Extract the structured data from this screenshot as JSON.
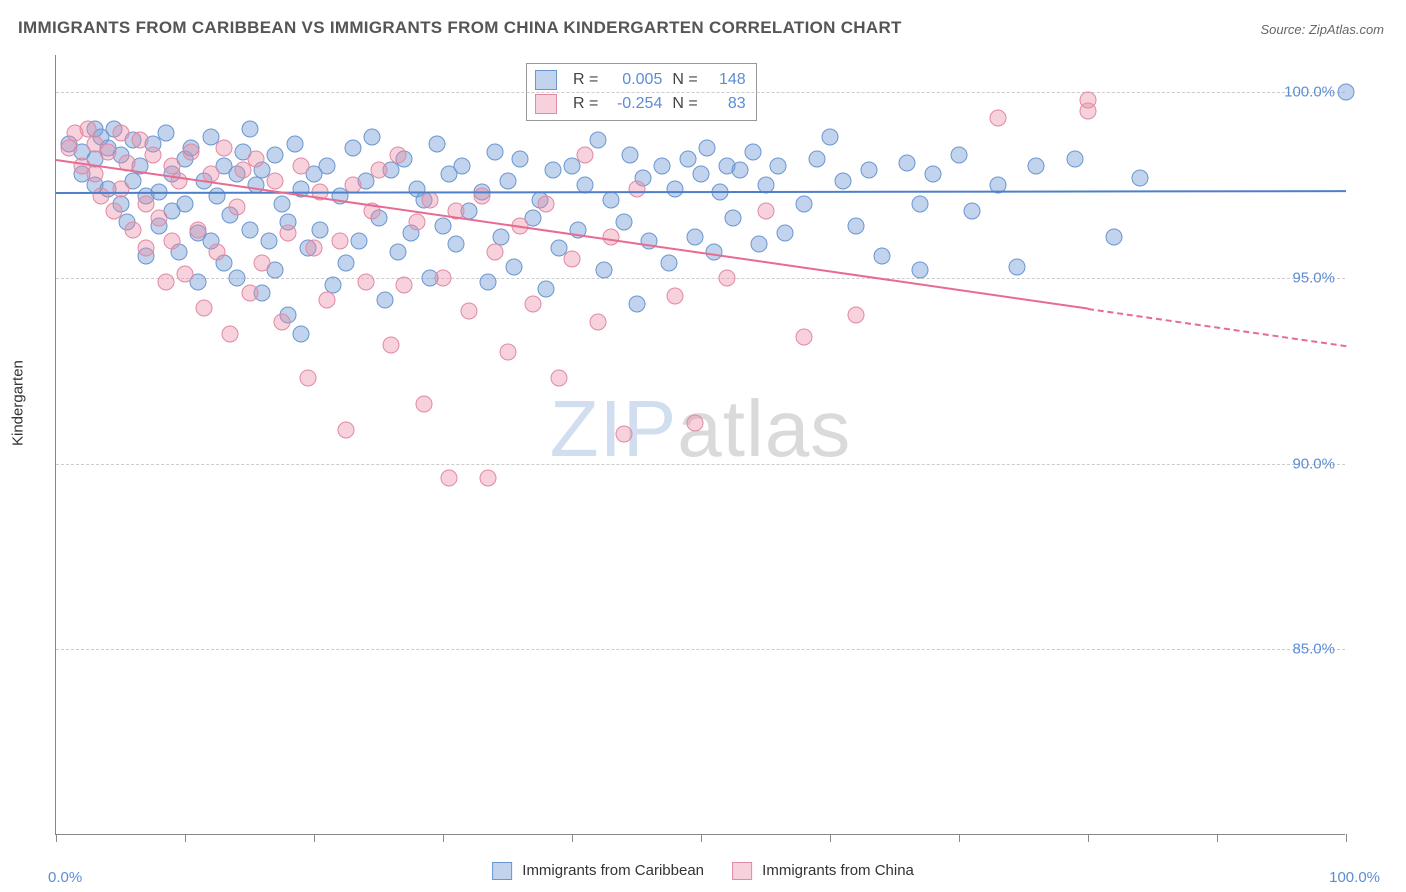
{
  "title": "IMMIGRANTS FROM CARIBBEAN VS IMMIGRANTS FROM CHINA KINDERGARTEN CORRELATION CHART",
  "source": "Source: ZipAtlas.com",
  "ylabel": "Kindergarten",
  "watermark_parts": [
    "ZIP",
    "atlas"
  ],
  "chart": {
    "type": "scatter-correlation",
    "xlim": [
      0,
      100
    ],
    "ylim": [
      80,
      101
    ],
    "xtick_label_min": "0.0%",
    "xtick_label_max": "100.0%",
    "xtick_positions": [
      0,
      10,
      20,
      30,
      40,
      50,
      60,
      70,
      80,
      90,
      100
    ],
    "ytick_positions": [
      85,
      90,
      95,
      100
    ],
    "ytick_labels": [
      "85.0%",
      "90.0%",
      "95.0%",
      "100.0%"
    ],
    "grid_color": "#cccccc",
    "background_color": "#ffffff",
    "axis_color": "#888888",
    "axis_label_color": "#5b8dd6",
    "text_color": "#333333",
    "title_fontsize": 17,
    "label_fontsize": 15,
    "point_radius": 8.5,
    "series": [
      {
        "name": "Immigrants from Caribbean",
        "fill": "rgba(120,160,215,0.45)",
        "stroke": "#6a96d0",
        "R": "0.005",
        "N": "148",
        "regression": {
          "x0": 0,
          "y0": 97.3,
          "x1": 100,
          "y1": 97.35,
          "solid_to_x": 100,
          "color": "#4f7fc7"
        },
        "points": [
          [
            1,
            98.6
          ],
          [
            2,
            98.4
          ],
          [
            2,
            97.8
          ],
          [
            3,
            99.0
          ],
          [
            3,
            98.2
          ],
          [
            3,
            97.5
          ],
          [
            3.5,
            98.8
          ],
          [
            4,
            98.5
          ],
          [
            4,
            97.4
          ],
          [
            4.5,
            99.0
          ],
          [
            5,
            98.3
          ],
          [
            5,
            97.0
          ],
          [
            5.5,
            96.5
          ],
          [
            6,
            98.7
          ],
          [
            6,
            97.6
          ],
          [
            6.5,
            98.0
          ],
          [
            7,
            97.2
          ],
          [
            7,
            95.6
          ],
          [
            7.5,
            98.6
          ],
          [
            8,
            97.3
          ],
          [
            8,
            96.4
          ],
          [
            8.5,
            98.9
          ],
          [
            9,
            97.8
          ],
          [
            9,
            96.8
          ],
          [
            9.5,
            95.7
          ],
          [
            10,
            98.2
          ],
          [
            10,
            97.0
          ],
          [
            10.5,
            98.5
          ],
          [
            11,
            96.2
          ],
          [
            11,
            94.9
          ],
          [
            11.5,
            97.6
          ],
          [
            12,
            98.8
          ],
          [
            12,
            96.0
          ],
          [
            12.5,
            97.2
          ],
          [
            13,
            95.4
          ],
          [
            13,
            98.0
          ],
          [
            13.5,
            96.7
          ],
          [
            14,
            97.8
          ],
          [
            14,
            95.0
          ],
          [
            14.5,
            98.4
          ],
          [
            15,
            96.3
          ],
          [
            15,
            99.0
          ],
          [
            15.5,
            97.5
          ],
          [
            16,
            94.6
          ],
          [
            16,
            97.9
          ],
          [
            16.5,
            96.0
          ],
          [
            17,
            98.3
          ],
          [
            17,
            95.2
          ],
          [
            17.5,
            97.0
          ],
          [
            18,
            96.5
          ],
          [
            18,
            94.0
          ],
          [
            18.5,
            98.6
          ],
          [
            19,
            97.4
          ],
          [
            19,
            93.5
          ],
          [
            19.5,
            95.8
          ],
          [
            20,
            97.8
          ],
          [
            20.5,
            96.3
          ],
          [
            21,
            98.0
          ],
          [
            21.5,
            94.8
          ],
          [
            22,
            97.2
          ],
          [
            22.5,
            95.4
          ],
          [
            23,
            98.5
          ],
          [
            23.5,
            96.0
          ],
          [
            24,
            97.6
          ],
          [
            24.5,
            98.8
          ],
          [
            25,
            96.6
          ],
          [
            25.5,
            94.4
          ],
          [
            26,
            97.9
          ],
          [
            26.5,
            95.7
          ],
          [
            27,
            98.2
          ],
          [
            27.5,
            96.2
          ],
          [
            28,
            97.4
          ],
          [
            28.5,
            97.1
          ],
          [
            29,
            95.0
          ],
          [
            29.5,
            98.6
          ],
          [
            30,
            96.4
          ],
          [
            30.5,
            97.8
          ],
          [
            31,
            95.9
          ],
          [
            31.5,
            98.0
          ],
          [
            32,
            96.8
          ],
          [
            33,
            97.3
          ],
          [
            33.5,
            94.9
          ],
          [
            34,
            98.4
          ],
          [
            34.5,
            96.1
          ],
          [
            35,
            97.6
          ],
          [
            35.5,
            95.3
          ],
          [
            36,
            98.2
          ],
          [
            37,
            96.6
          ],
          [
            37.5,
            97.1
          ],
          [
            38,
            94.7
          ],
          [
            38.5,
            97.9
          ],
          [
            39,
            95.8
          ],
          [
            40,
            98.0
          ],
          [
            40.5,
            96.3
          ],
          [
            41,
            97.5
          ],
          [
            42,
            98.7
          ],
          [
            42.5,
            95.2
          ],
          [
            43,
            97.1
          ],
          [
            44,
            96.5
          ],
          [
            44.5,
            98.3
          ],
          [
            45,
            94.3
          ],
          [
            45.5,
            97.7
          ],
          [
            46,
            96.0
          ],
          [
            47,
            98.0
          ],
          [
            47.5,
            95.4
          ],
          [
            48,
            97.4
          ],
          [
            49,
            98.2
          ],
          [
            49.5,
            96.1
          ],
          [
            50,
            97.8
          ],
          [
            50.5,
            98.5
          ],
          [
            51,
            95.7
          ],
          [
            51.5,
            97.3
          ],
          [
            52,
            98.0
          ],
          [
            52.5,
            96.6
          ],
          [
            53,
            97.9
          ],
          [
            54,
            98.4
          ],
          [
            54.5,
            95.9
          ],
          [
            55,
            97.5
          ],
          [
            56,
            98.0
          ],
          [
            56.5,
            96.2
          ],
          [
            58,
            97.0
          ],
          [
            59,
            98.2
          ],
          [
            60,
            98.8
          ],
          [
            61,
            97.6
          ],
          [
            62,
            96.4
          ],
          [
            63,
            97.9
          ],
          [
            64,
            95.6
          ],
          [
            66,
            98.1
          ],
          [
            67,
            97.0
          ],
          [
            67,
            95.2
          ],
          [
            68,
            97.8
          ],
          [
            70,
            98.3
          ],
          [
            71,
            96.8
          ],
          [
            73,
            97.5
          ],
          [
            74.5,
            95.3
          ],
          [
            76,
            98.0
          ],
          [
            79,
            98.2
          ],
          [
            82,
            96.1
          ],
          [
            84,
            97.7
          ],
          [
            100,
            100.0
          ]
        ]
      },
      {
        "name": "Immigrants from China",
        "fill": "rgba(235,140,165,0.40)",
        "stroke": "#e08aa3",
        "R": "-0.254",
        "N": "83",
        "regression": {
          "x0": 0,
          "y0": 98.2,
          "x1": 100,
          "y1": 93.2,
          "solid_to_x": 80,
          "color": "#e86b91"
        },
        "points": [
          [
            1,
            98.5
          ],
          [
            1.5,
            98.9
          ],
          [
            2,
            98.0
          ],
          [
            2.5,
            99.0
          ],
          [
            3,
            97.8
          ],
          [
            3,
            98.6
          ],
          [
            3.5,
            97.2
          ],
          [
            4,
            98.4
          ],
          [
            4.5,
            96.8
          ],
          [
            5,
            98.9
          ],
          [
            5,
            97.4
          ],
          [
            5.5,
            98.1
          ],
          [
            6,
            96.3
          ],
          [
            6.5,
            98.7
          ],
          [
            7,
            97.0
          ],
          [
            7,
            95.8
          ],
          [
            7.5,
            98.3
          ],
          [
            8,
            96.6
          ],
          [
            8.5,
            94.9
          ],
          [
            9,
            98.0
          ],
          [
            9,
            96.0
          ],
          [
            9.5,
            97.6
          ],
          [
            10,
            95.1
          ],
          [
            10.5,
            98.4
          ],
          [
            11,
            96.3
          ],
          [
            11.5,
            94.2
          ],
          [
            12,
            97.8
          ],
          [
            12.5,
            95.7
          ],
          [
            13,
            98.5
          ],
          [
            13.5,
            93.5
          ],
          [
            14,
            96.9
          ],
          [
            14.5,
            97.9
          ],
          [
            15,
            94.6
          ],
          [
            15.5,
            98.2
          ],
          [
            16,
            95.4
          ],
          [
            17,
            97.6
          ],
          [
            17.5,
            93.8
          ],
          [
            18,
            96.2
          ],
          [
            19,
            98.0
          ],
          [
            19.5,
            92.3
          ],
          [
            20,
            95.8
          ],
          [
            20.5,
            97.3
          ],
          [
            21,
            94.4
          ],
          [
            22,
            96.0
          ],
          [
            22.5,
            90.9
          ],
          [
            23,
            97.5
          ],
          [
            24,
            94.9
          ],
          [
            24.5,
            96.8
          ],
          [
            25,
            97.9
          ],
          [
            26,
            93.2
          ],
          [
            26.5,
            98.3
          ],
          [
            27,
            94.8
          ],
          [
            28,
            96.5
          ],
          [
            28.5,
            91.6
          ],
          [
            29,
            97.1
          ],
          [
            30,
            95.0
          ],
          [
            30.5,
            89.6
          ],
          [
            31,
            96.8
          ],
          [
            32,
            94.1
          ],
          [
            33,
            97.2
          ],
          [
            33.5,
            89.6
          ],
          [
            34,
            95.7
          ],
          [
            35,
            93.0
          ],
          [
            36,
            96.4
          ],
          [
            37,
            94.3
          ],
          [
            38,
            97.0
          ],
          [
            39,
            92.3
          ],
          [
            40,
            95.5
          ],
          [
            41,
            98.3
          ],
          [
            42,
            93.8
          ],
          [
            43,
            96.1
          ],
          [
            44,
            90.8
          ],
          [
            45,
            97.4
          ],
          [
            48,
            94.5
          ],
          [
            49.5,
            91.1
          ],
          [
            52,
            95.0
          ],
          [
            55,
            96.8
          ],
          [
            58,
            93.4
          ],
          [
            62,
            94.0
          ],
          [
            73,
            99.3
          ],
          [
            80,
            99.5
          ],
          [
            80,
            99.8
          ]
        ]
      }
    ]
  },
  "bottom_legend": [
    {
      "label": "Immigrants from Caribbean",
      "swatch_fill": "rgba(120,160,215,0.45)",
      "swatch_stroke": "#6a96d0"
    },
    {
      "label": "Immigrants from China",
      "swatch_fill": "rgba(235,140,165,0.40)",
      "swatch_stroke": "#e08aa3"
    }
  ]
}
